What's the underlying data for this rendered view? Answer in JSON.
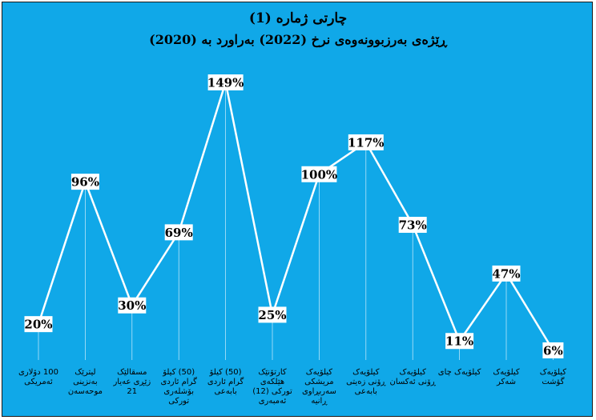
{
  "chart_data": {
    "type": "line",
    "title": "چارتی ژمارە (1)",
    "subtitle": "ڕێژەی بەرزبوونەوەی نرخ (2022) بەراورد بە (2020)",
    "xlabel": "",
    "ylabel": "",
    "ylim": [
      0,
      160
    ],
    "grid": false,
    "legend": "none",
    "colors": {
      "background": "#10a8e8",
      "line": "#ffffff",
      "label_box": "#ffffff",
      "text": "#000000"
    },
    "categories": [
      [
        "100 دۆلاری",
        "ئەمریکی"
      ],
      [
        "لیترێک",
        "بەنزینی",
        "موحەسەن"
      ],
      [
        "مسقالێک",
        "زێڕی عەیار",
        "21"
      ],
      [
        "(50) کیلۆ",
        "گرام ئاردی",
        "بۆشلەری",
        "تورکی"
      ],
      [
        "(50) کیلۆ",
        "گرام ئاردی",
        "بابەعی"
      ],
      [
        "کارتۆنێک",
        "هێلکەی",
        "تورکی (12)",
        "ئەمبەری"
      ],
      [
        "کیلۆیەک",
        "مریشکی",
        "سەربڕاوی",
        "ڕانیە"
      ],
      [
        "کیلۆیەک",
        "ڕۆنی زەیتی",
        "بابەعی"
      ],
      [
        "کیلۆیەک",
        "ڕۆنی ئەکسان"
      ],
      [
        "کیلۆیەک چای"
      ],
      [
        "کیلۆیەک",
        "شەکر"
      ],
      [
        "کیلۆیەک",
        "گۆشت"
      ]
    ],
    "series": [
      {
        "values": [
          20,
          96,
          30,
          69,
          149,
          25,
          100,
          117,
          73,
          11,
          47,
          6
        ]
      }
    ],
    "data_labels": [
      "20%",
      "96%",
      "30%",
      "69%",
      "149%",
      "25%",
      "100%",
      "117%",
      "73%",
      "11%",
      "47%",
      "6%"
    ]
  }
}
